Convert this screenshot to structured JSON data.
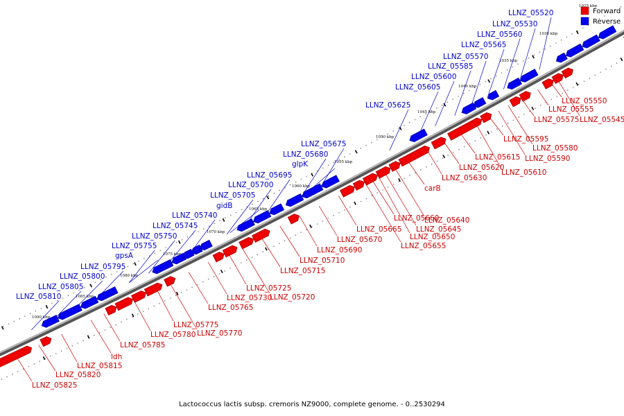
{
  "caption": "Lactococcus lactis subsp. cremoris NZ9000, complete genome. - 0..2530294",
  "legend": [
    {
      "label": "Forward",
      "color": "#ee0000"
    },
    {
      "label": "Reverse",
      "color": "#0000ee"
    }
  ],
  "colors": {
    "forward": "#ee0000",
    "reverse": "#0000ee",
    "forward_label": "#cc0000",
    "reverse_label": "#0000cc"
  },
  "ruler_units": "kbp",
  "tick_labels": [
    "1025 kbp",
    "1030 kbp",
    "1035 kbp",
    "1040 kbp",
    "1045 kbp",
    "1050 kbp",
    "1055 kbp",
    "1060 kbp",
    "1065 kbp",
    "1070 kbp",
    "1075 kbp",
    "1080 kbp",
    "1085 kbp",
    "1090 kbp"
  ],
  "forward_genes": [
    "LLNZ_05545",
    "LLNZ_05550",
    "LLNZ_05555",
    "LLNZ_05575",
    "LLNZ_05580",
    "LLNZ_05590",
    "LLNZ_05595",
    "LLNZ_05610",
    "LLNZ_05615",
    "LLNZ_05620",
    "LLNZ_05630",
    "carB",
    "LLNZ_05640",
    "LLNZ_05645",
    "LLNZ_05650",
    "LLNZ_05655",
    "LLNZ_05660",
    "LLNZ_05665",
    "LLNZ_05670",
    "LLNZ_05690",
    "LLNZ_05710",
    "LLNZ_05715",
    "LLNZ_05720",
    "LLNZ_05725",
    "LLNZ_05730",
    "LLNZ_05765",
    "LLNZ_05770",
    "LLNZ_05775",
    "LLNZ_05780",
    "LLNZ_05785",
    "ldh",
    "LLNZ_05815",
    "LLNZ_05820",
    "LLNZ_05825"
  ],
  "reverse_genes": [
    "LLNZ_05520",
    "LLNZ_05530",
    "LLNZ_05560",
    "LLNZ_05565",
    "LLNZ_05570",
    "LLNZ_05585",
    "LLNZ_05600",
    "LLNZ_05605",
    "LLNZ_05625",
    "LLNZ_05675",
    "LLNZ_05680",
    "glpK",
    "LLNZ_05695",
    "LLNZ_05700",
    "LLNZ_05705",
    "gidB",
    "LLNZ_05740",
    "LLNZ_05745",
    "LLNZ_05750",
    "LLNZ_05755",
    "gpsA",
    "LLNZ_05795",
    "LLNZ_05800",
    "LLNZ_05805",
    "LLNZ_05810"
  ]
}
